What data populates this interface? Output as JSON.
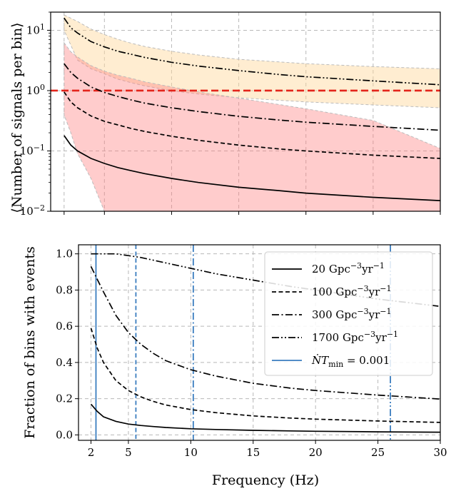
{
  "chart_data": [
    {
      "type": "line",
      "panel": "top",
      "title": "",
      "xlabel": "",
      "ylabel": "⟨Number of signals per bin⟩",
      "yscale": "log",
      "xlim": [
        1.0,
        30.0
      ],
      "ylim": [
        0.01,
        20
      ],
      "grid": true,
      "yticks": [
        {
          "value": 0.01,
          "base": "10",
          "exp": "−2"
        },
        {
          "value": 0.1,
          "base": "10",
          "exp": "−1"
        },
        {
          "value": 1,
          "base": "10",
          "exp": "0"
        },
        {
          "value": 10,
          "base": "10",
          "exp": "1"
        }
      ],
      "x": [
        2,
        2.5,
        3,
        4,
        5,
        6,
        7,
        8,
        10,
        12,
        15,
        18,
        20,
        25,
        30
      ],
      "series": [
        {
          "line_style": "solid",
          "values": [
            0.18,
            0.125,
            0.1,
            0.075,
            0.062,
            0.053,
            0.047,
            0.042,
            0.035,
            0.03,
            0.025,
            0.022,
            0.02,
            0.017,
            0.015
          ]
        },
        {
          "line_style": "dashed",
          "values": [
            0.95,
            0.65,
            0.52,
            0.38,
            0.31,
            0.27,
            0.235,
            0.21,
            0.175,
            0.15,
            0.125,
            0.108,
            0.1,
            0.085,
            0.075
          ]
        },
        {
          "line_style": "dashdot",
          "values": [
            2.8,
            2.0,
            1.6,
            1.15,
            0.93,
            0.8,
            0.7,
            0.62,
            0.52,
            0.45,
            0.375,
            0.325,
            0.3,
            0.255,
            0.22
          ]
        },
        {
          "line_style": "dashdotdot",
          "values": [
            16,
            11,
            9,
            6.5,
            5.3,
            4.5,
            4.0,
            3.55,
            2.95,
            2.55,
            2.15,
            1.85,
            1.7,
            1.45,
            1.25
          ]
        }
      ],
      "bands": [
        {
          "color": "#ffd699",
          "opacity": 0.45,
          "x": [
            2,
            3,
            4,
            5,
            6,
            7,
            8,
            10,
            12,
            15,
            20,
            25,
            30
          ],
          "lower": [
            10,
            3.2,
            2.3,
            1.9,
            1.55,
            1.35,
            1.2,
            1.0,
            0.88,
            0.76,
            0.65,
            0.58,
            0.52
          ],
          "upper": [
            18,
            14,
            10.5,
            8.5,
            7.1,
            6.1,
            5.4,
            4.5,
            3.9,
            3.3,
            2.8,
            2.5,
            2.3
          ]
        },
        {
          "color": "#ff8080",
          "opacity": 0.4,
          "x": [
            2,
            2.5,
            3,
            4,
            5,
            6,
            7,
            8,
            10,
            12,
            15,
            20,
            25,
            30
          ],
          "lower": [
            0.4,
            0.2,
            0.09,
            0.035,
            0.01,
            0.01,
            0.01,
            0.01,
            0.01,
            0.01,
            0.01,
            0.01,
            0.01,
            0.01
          ],
          "upper": [
            6.2,
            4.4,
            3.6,
            2.6,
            2.1,
            1.8,
            1.6,
            1.4,
            1.15,
            0.95,
            0.75,
            0.5,
            0.32,
            0.11
          ]
        }
      ],
      "reference_lines": [
        {
          "axis": "y",
          "value": 1.0,
          "color": "#e3241b",
          "line_style": "dashed"
        }
      ]
    },
    {
      "type": "line",
      "panel": "bottom",
      "title": "",
      "xlabel": "Frequency (Hz)",
      "ylabel": "Fraction of bins with events",
      "xlim": [
        1.0,
        30.0
      ],
      "ylim": [
        -0.03,
        1.05
      ],
      "grid": true,
      "xticks": [
        "2",
        "5",
        "10",
        "15",
        "20",
        "25",
        "30"
      ],
      "xtick_values": [
        2,
        5,
        10,
        15,
        20,
        25,
        30
      ],
      "yticks": [
        "0.0",
        "0.2",
        "0.4",
        "0.6",
        "0.8",
        "1.0"
      ],
      "ytick_values": [
        0.0,
        0.2,
        0.4,
        0.6,
        0.8,
        1.0
      ],
      "x": [
        2,
        2.5,
        3,
        4,
        5,
        6,
        7,
        8,
        10,
        12,
        15,
        18,
        20,
        25,
        30
      ],
      "series": [
        {
          "name": "20 Gpc⁻³yr⁻¹",
          "line_style": "solid",
          "values": [
            0.17,
            0.13,
            0.1,
            0.075,
            0.06,
            0.052,
            0.046,
            0.041,
            0.034,
            0.03,
            0.025,
            0.022,
            0.02,
            0.017,
            0.015
          ]
        },
        {
          "name": "100 Gpc⁻³yr⁻¹",
          "line_style": "dashed",
          "values": [
            0.59,
            0.48,
            0.4,
            0.3,
            0.245,
            0.21,
            0.185,
            0.165,
            0.14,
            0.123,
            0.105,
            0.093,
            0.087,
            0.077,
            0.069
          ]
        },
        {
          "name": "300 Gpc⁻³yr⁻¹",
          "line_style": "dashdot",
          "values": [
            0.93,
            0.86,
            0.79,
            0.66,
            0.565,
            0.5,
            0.45,
            0.41,
            0.36,
            0.325,
            0.285,
            0.258,
            0.245,
            0.22,
            0.198
          ]
        },
        {
          "name": "1700 Gpc⁻³yr⁻¹",
          "line_style": "dashdotdot",
          "values": [
            1.0,
            1.0,
            1.0,
            1.0,
            0.99,
            0.98,
            0.965,
            0.95,
            0.92,
            0.89,
            0.855,
            0.82,
            0.8,
            0.75,
            0.71
          ]
        }
      ],
      "vertical_lines": [
        {
          "x": 2.4,
          "line_style": "solid",
          "color": "#3a7dbf"
        },
        {
          "x": 5.6,
          "line_style": "dashed",
          "color": "#3a7dbf"
        },
        {
          "x": 10.2,
          "line_style": "dashdot",
          "color": "#3a7dbf"
        },
        {
          "x": 26.0,
          "line_style": "dashdotdot",
          "color": "#3a7dbf"
        }
      ],
      "legend": {
        "placement": "right",
        "entries": [
          {
            "base": "20 Gpc",
            "sup1": "−3",
            "mid": "yr",
            "sup2": "−1",
            "line_style": "solid",
            "color": "#000000"
          },
          {
            "base": "100 Gpc",
            "sup1": "−3",
            "mid": "yr",
            "sup2": "−1",
            "line_style": "dashed",
            "color": "#000000"
          },
          {
            "base": "300 Gpc",
            "sup1": "−3",
            "mid": "yr",
            "sup2": "−1",
            "line_style": "dashdot",
            "color": "#000000"
          },
          {
            "base": "1700 Gpc",
            "sup1": "−3",
            "mid": "yr",
            "sup2": "−1",
            "line_style": "dashdotdot",
            "color": "#000000"
          },
          {
            "math": "ṄT",
            "sub": "min",
            "rest": " = 0.001",
            "line_style": "solid",
            "color": "#3a7dbf"
          }
        ]
      }
    }
  ]
}
